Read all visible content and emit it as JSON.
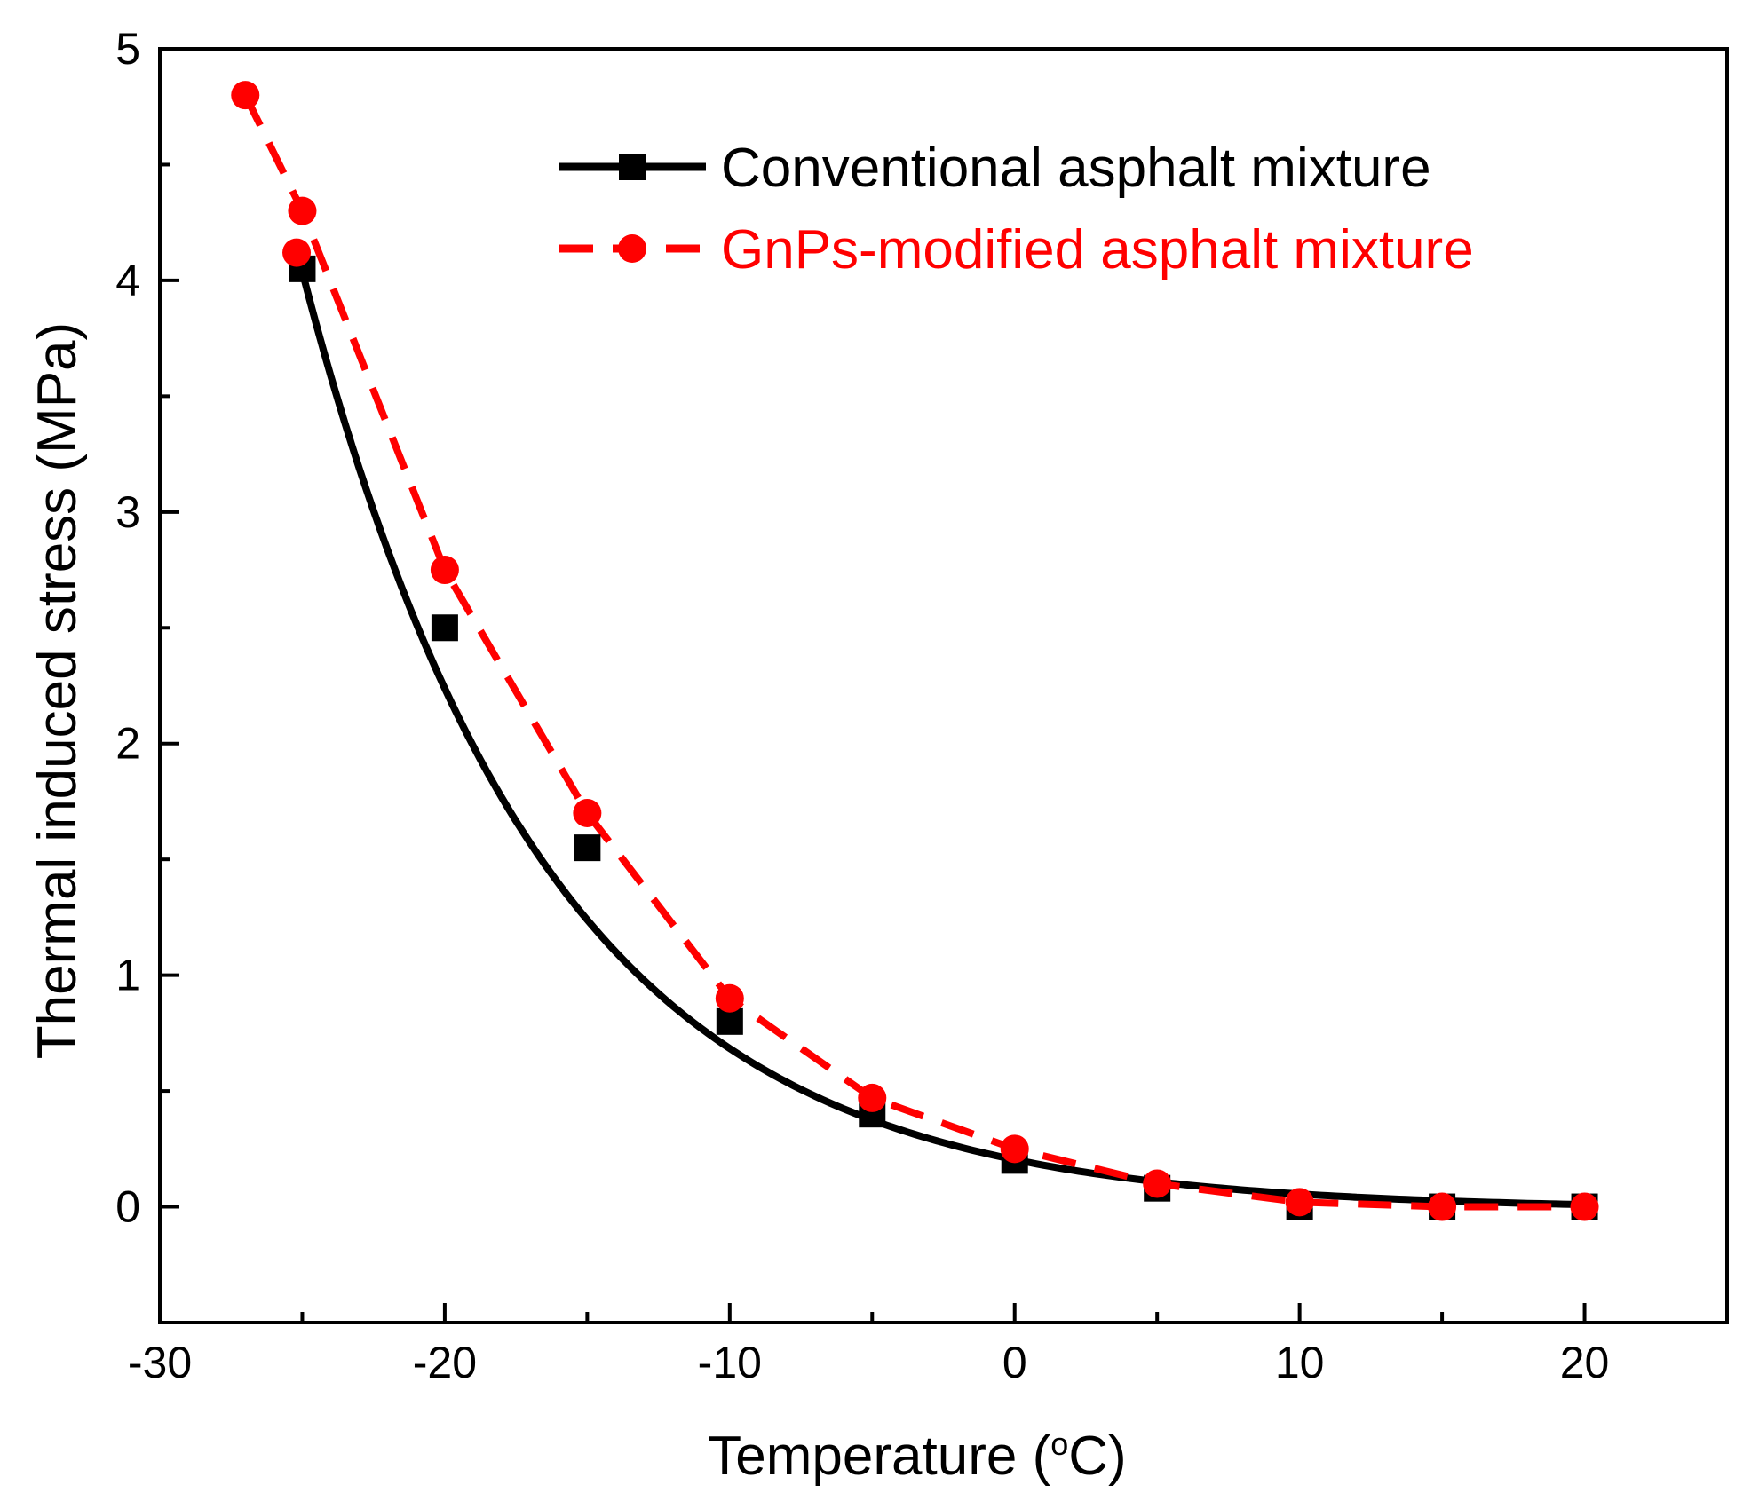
{
  "chart_data": {
    "type": "line",
    "title": "",
    "xlabel": "Temperature (°C)",
    "xlabel_main": "Temperature (",
    "xlabel_degree": "o",
    "xlabel_unit": "C)",
    "ylabel": "Thermal induced stress (MPa)",
    "xlim": [
      -30,
      25
    ],
    "ylim": [
      -0.5,
      5
    ],
    "xticks": [
      -30,
      -20,
      -10,
      0,
      10,
      20
    ],
    "xtick_labels": [
      "-30",
      "-20",
      "-10",
      "0",
      "10",
      "20"
    ],
    "yticks": [
      0,
      1,
      2,
      3,
      4,
      5
    ],
    "ytick_labels": [
      "0",
      "1",
      "2",
      "3",
      "4",
      "5"
    ],
    "grid": false,
    "legend_position": "top-right",
    "series": [
      {
        "name": "Conventional asphalt mixture",
        "color": "#000000",
        "line_style": "solid",
        "marker": "square",
        "x": [
          -25,
          -20,
          -15,
          -10,
          -5,
          0,
          5,
          10,
          15,
          20
        ],
        "y": [
          4.05,
          2.5,
          1.55,
          0.8,
          0.4,
          0.2,
          0.08,
          0.0,
          0.0,
          0.0
        ],
        "fit_curve": "exponential"
      },
      {
        "name": "GnPs-modified asphalt mixture",
        "color": "#ff0000",
        "line_style": "dashed",
        "marker": "circle",
        "x": [
          -27,
          -25,
          -25.2,
          -20,
          -15,
          -10,
          -5,
          0,
          5,
          10,
          15,
          20
        ],
        "y": [
          4.8,
          4.3,
          4.12,
          2.75,
          1.7,
          0.9,
          0.47,
          0.25,
          0.1,
          0.02,
          0.0,
          0.0
        ],
        "fit_curve": "linear-segments"
      }
    ]
  }
}
